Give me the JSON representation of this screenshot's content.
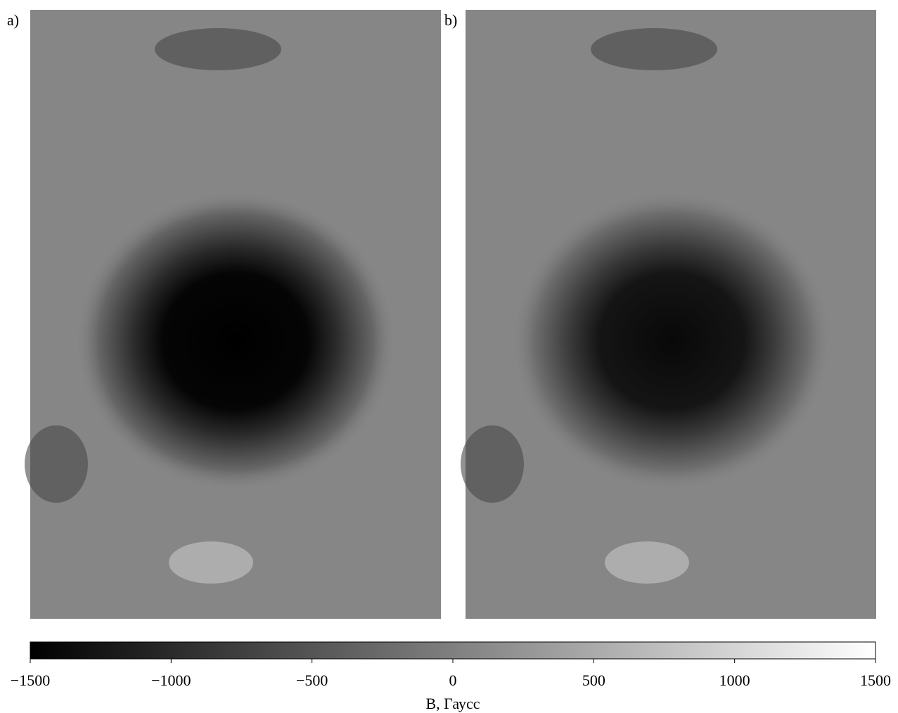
{
  "chart_data": {
    "type": "image",
    "panel_labels": [
      "a)",
      "b)"
    ],
    "xlabel": "B, Гаусс",
    "xlim": [
      -1500,
      1500
    ],
    "xticks": [
      {
        "value": -1500,
        "label": "−1500"
      },
      {
        "value": -1000,
        "label": "−1000"
      },
      {
        "value": -500,
        "label": "−500"
      },
      0,
      500,
      1000,
      1500
    ],
    "colormap": [
      "#000000",
      "#ffffff"
    ]
  }
}
